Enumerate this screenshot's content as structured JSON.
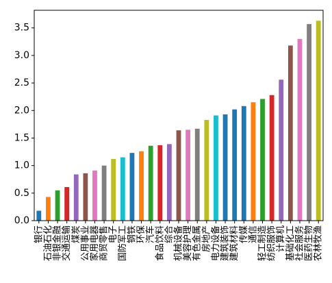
{
  "chart_data": {
    "type": "bar",
    "categories": [
      "银行",
      "石油石化",
      "非银金融",
      "交通运输",
      "煤炭",
      "公用事业",
      "家用电器",
      "商贸零售",
      "电子",
      "国防军工",
      "钢铁",
      "环保",
      "汽车",
      "食品饮料",
      "综合",
      "机械设备",
      "美容护理",
      "有色金属",
      "房地产",
      "电力设备",
      "建筑装饰",
      "建筑材料",
      "传媒",
      "通信",
      "轻工制造",
      "纺织服饰",
      "计算机",
      "基础化工",
      "社会服务",
      "医药生物",
      "农林牧渔"
    ],
    "values": [
      0.18,
      0.43,
      0.55,
      0.61,
      0.84,
      0.86,
      0.91,
      1.0,
      1.12,
      1.15,
      1.23,
      1.26,
      1.36,
      1.37,
      1.39,
      1.64,
      1.65,
      1.67,
      1.83,
      1.91,
      1.93,
      2.02,
      2.08,
      2.15,
      2.21,
      2.28,
      2.56,
      3.18,
      3.3,
      3.57,
      3.63
    ],
    "colors": [
      "#1f77b4",
      "#ff7f0e",
      "#2ca02c",
      "#d62728",
      "#9467bd",
      "#8c564b",
      "#e377c2",
      "#7f7f7f",
      "#bcbd22",
      "#17becf",
      "#1f77b4",
      "#ff7f0e",
      "#2ca02c",
      "#d62728",
      "#9467bd",
      "#8c564b",
      "#e377c2",
      "#7f7f7f",
      "#bcbd22",
      "#17becf",
      "#1f77b4",
      "#1f77b4",
      "#1f77b4",
      "#ff7f0e",
      "#2ca02c",
      "#d62728",
      "#9467bd",
      "#8c564b",
      "#e377c2",
      "#7f7f7f",
      "#bcbd22"
    ],
    "ylim": [
      0,
      3.82
    ],
    "yticks": [
      {
        "value": 0,
        "label": "0.0"
      },
      {
        "value": 0.5,
        "label": "0.5"
      },
      {
        "value": 1,
        "label": "1.0"
      },
      {
        "value": 1.5,
        "label": "1.5"
      },
      {
        "value": 2,
        "label": "2.0"
      },
      {
        "value": 2.5,
        "label": "2.5"
      },
      {
        "value": 3,
        "label": "3.0"
      },
      {
        "value": 3.5,
        "label": "3.5"
      }
    ]
  }
}
